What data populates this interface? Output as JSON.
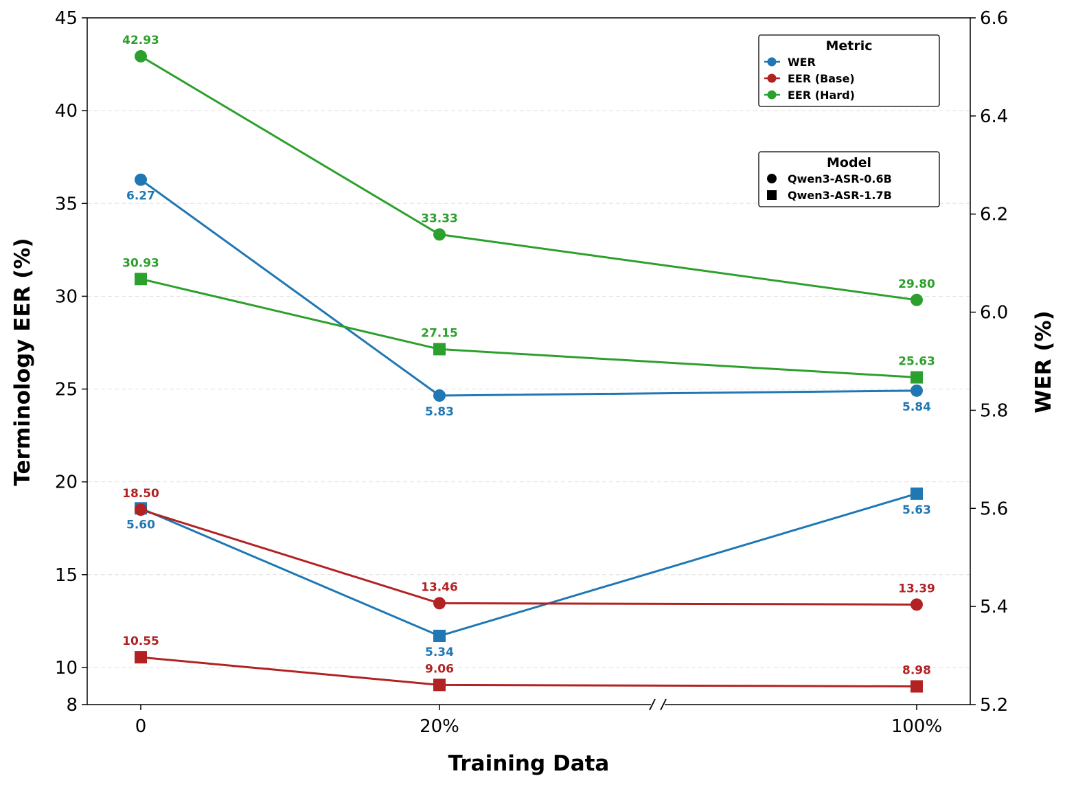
{
  "chart_data": {
    "type": "line",
    "xlabel": "Training Data",
    "ylabel_left": "Terminology EER (%)",
    "ylabel_right": "WER (%)",
    "categories": [
      "0",
      "20%",
      "100%"
    ],
    "axis_break": "//",
    "ylim_left": [
      8,
      45
    ],
    "yticks_left": [
      "8",
      "10",
      "15",
      "20",
      "25",
      "30",
      "35",
      "40",
      "45"
    ],
    "ylim_right": [
      5.2,
      6.6
    ],
    "yticks_right": [
      "5.2",
      "5.4",
      "5.6",
      "5.8",
      "6.0",
      "6.2",
      "6.4",
      "6.6"
    ],
    "grid": "horizontal-dashed",
    "series": [
      {
        "name": "WER",
        "model": "Qwen3-ASR-0.6B",
        "axis": "right",
        "color": "#1f77b4",
        "marker": "circle",
        "values": [
          6.27,
          5.83,
          5.84
        ],
        "labels": [
          "6.27",
          "5.83",
          "5.84"
        ],
        "label_pos": "below"
      },
      {
        "name": "WER",
        "model": "Qwen3-ASR-1.7B",
        "axis": "right",
        "color": "#1f77b4",
        "marker": "square",
        "values": [
          5.6,
          5.34,
          5.63
        ],
        "labels": [
          "5.60",
          "5.34",
          "5.63"
        ],
        "label_pos": "below"
      },
      {
        "name": "EER (Base)",
        "model": "Qwen3-ASR-0.6B",
        "axis": "left",
        "color": "#b22222",
        "marker": "circle",
        "values": [
          18.5,
          13.46,
          13.39
        ],
        "labels": [
          "18.50",
          "13.46",
          "13.39"
        ],
        "label_pos": "above"
      },
      {
        "name": "EER (Base)",
        "model": "Qwen3-ASR-1.7B",
        "axis": "left",
        "color": "#b22222",
        "marker": "square",
        "values": [
          10.55,
          9.06,
          8.98
        ],
        "labels": [
          "10.55",
          "9.06",
          "8.98"
        ],
        "label_pos": "above"
      },
      {
        "name": "EER (Hard)",
        "model": "Qwen3-ASR-0.6B",
        "axis": "left",
        "color": "#2ca02c",
        "marker": "circle",
        "values": [
          42.93,
          33.33,
          29.8
        ],
        "labels": [
          "42.93",
          "33.33",
          "29.80"
        ],
        "label_pos": "above"
      },
      {
        "name": "EER (Hard)",
        "model": "Qwen3-ASR-1.7B",
        "axis": "left",
        "color": "#2ca02c",
        "marker": "square",
        "values": [
          30.93,
          27.15,
          25.63
        ],
        "labels": [
          "30.93",
          "27.15",
          "25.63"
        ],
        "label_pos": "above"
      }
    ],
    "legends": [
      {
        "title": "Metric",
        "placement": "top-right",
        "items": [
          {
            "label": "WER",
            "color": "#1f77b4",
            "marker": "circle-line"
          },
          {
            "label": "EER (Base)",
            "color": "#b22222",
            "marker": "circle-line"
          },
          {
            "label": "EER (Hard)",
            "color": "#2ca02c",
            "marker": "circle-line"
          }
        ]
      },
      {
        "title": "Model",
        "placement": "upper-right",
        "items": [
          {
            "label": "Qwen3-ASR-0.6B",
            "color": "#000000",
            "marker": "circle"
          },
          {
            "label": "Qwen3-ASR-1.7B",
            "color": "#000000",
            "marker": "square"
          }
        ]
      }
    ]
  }
}
